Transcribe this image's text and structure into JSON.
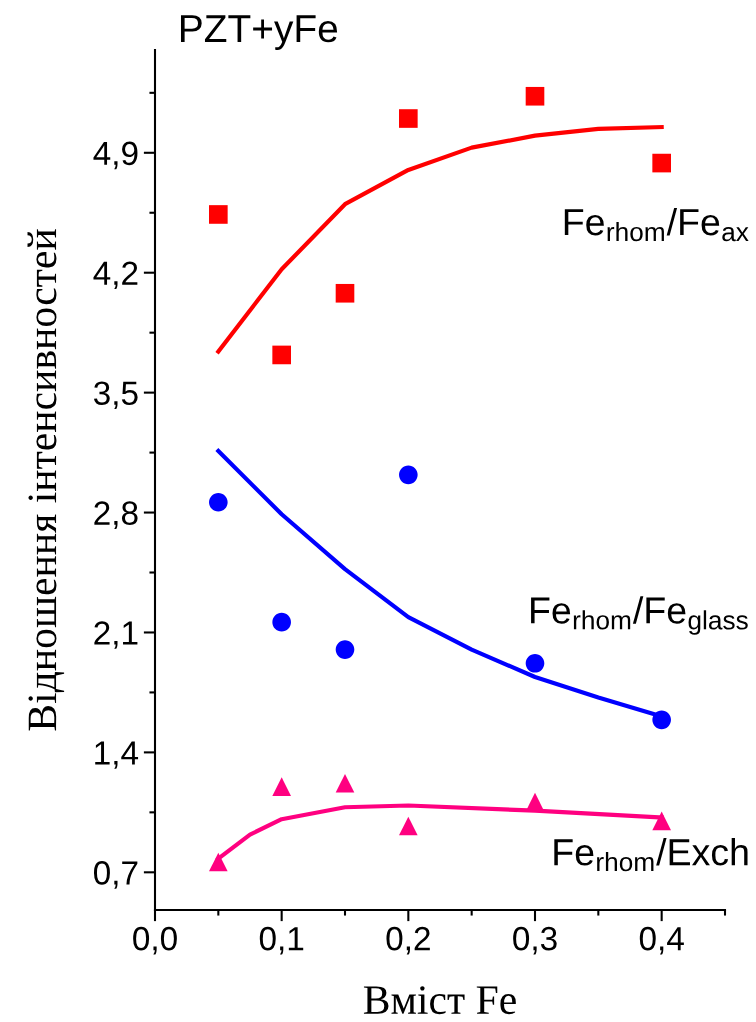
{
  "chart_data": {
    "type": "scatter",
    "title": "PZT+yFe",
    "xlabel": "Вміст Fe",
    "ylabel": "Відношення інтенсивностей",
    "xlim": [
      0,
      0.45
    ],
    "ylim": [
      0.48,
      5.5
    ],
    "xticks": [
      {
        "value": 0,
        "label": "0,0"
      },
      {
        "value": 0.05,
        "label": null
      },
      {
        "value": 0.1,
        "label": "0,1"
      },
      {
        "value": 0.15,
        "label": null
      },
      {
        "value": 0.2,
        "label": "0,2"
      },
      {
        "value": 0.25,
        "label": null
      },
      {
        "value": 0.3,
        "label": "0,3"
      },
      {
        "value": 0.35,
        "label": null
      },
      {
        "value": 0.4,
        "label": "0,4"
      },
      {
        "value": 0.45,
        "label": null
      }
    ],
    "yticks": [
      {
        "value": 0.7,
        "label": "0,7"
      },
      {
        "value": 1.05,
        "label": null
      },
      {
        "value": 1.4,
        "label": "1,4"
      },
      {
        "value": 1.75,
        "label": null
      },
      {
        "value": 2.1,
        "label": "2,1"
      },
      {
        "value": 2.45,
        "label": null
      },
      {
        "value": 2.8,
        "label": "2,8"
      },
      {
        "value": 3.15,
        "label": null
      },
      {
        "value": 3.5,
        "label": "3,5"
      },
      {
        "value": 3.85,
        "label": null
      },
      {
        "value": 4.2,
        "label": "4,2"
      },
      {
        "value": 4.55,
        "label": null
      },
      {
        "value": 4.9,
        "label": "4,9"
      },
      {
        "value": 5.25,
        "label": null
      }
    ],
    "grid": false,
    "legend": false,
    "series": [
      {
        "name": "Fe$_{rhom}$/Fe$_{ax}$",
        "marker": "square",
        "color": "#ff0000",
        "x": [
          0.05,
          0.1,
          0.15,
          0.2,
          0.3,
          0.4
        ],
        "values": [
          4.54,
          3.72,
          4.08,
          5.1,
          5.23,
          4.84
        ]
      },
      {
        "type": "line",
        "marker": "none",
        "color": "#ff0000",
        "x": [
          0.05,
          0.1,
          0.15,
          0.2,
          0.25,
          0.3,
          0.35,
          0.4
        ],
        "values": [
          3.74,
          4.22,
          4.6,
          4.8,
          4.93,
          5.0,
          5.04,
          5.05
        ]
      },
      {
        "name": "Fe$_{rhom}$/Fe$_{glass}$",
        "marker": "circle",
        "color": "#0000ff",
        "x": [
          0.05,
          0.1,
          0.15,
          0.2,
          0.3,
          0.4
        ],
        "values": [
          2.86,
          2.16,
          2.0,
          3.02,
          1.92,
          1.59
        ]
      },
      {
        "type": "line",
        "marker": "none",
        "color": "#0000ff",
        "x": [
          0.05,
          0.1,
          0.15,
          0.2,
          0.25,
          0.3,
          0.35,
          0.4
        ],
        "values": [
          3.16,
          2.79,
          2.47,
          2.19,
          2.0,
          1.84,
          1.72,
          1.61
        ]
      },
      {
        "name": "Fe$_{rhom}$/Exch",
        "marker": "triangle",
        "color": "#ff0080",
        "x": [
          0.05,
          0.1,
          0.15,
          0.2,
          0.3,
          0.4
        ],
        "values": [
          0.76,
          1.2,
          1.22,
          0.97,
          1.11,
          1.0
        ]
      },
      {
        "type": "line",
        "marker": "none",
        "color": "#ff0080",
        "x": [
          0.05,
          0.075,
          0.1,
          0.15,
          0.2,
          0.3,
          0.4
        ],
        "values": [
          0.78,
          0.92,
          1.01,
          1.08,
          1.09,
          1.06,
          1.02
        ]
      }
    ]
  }
}
